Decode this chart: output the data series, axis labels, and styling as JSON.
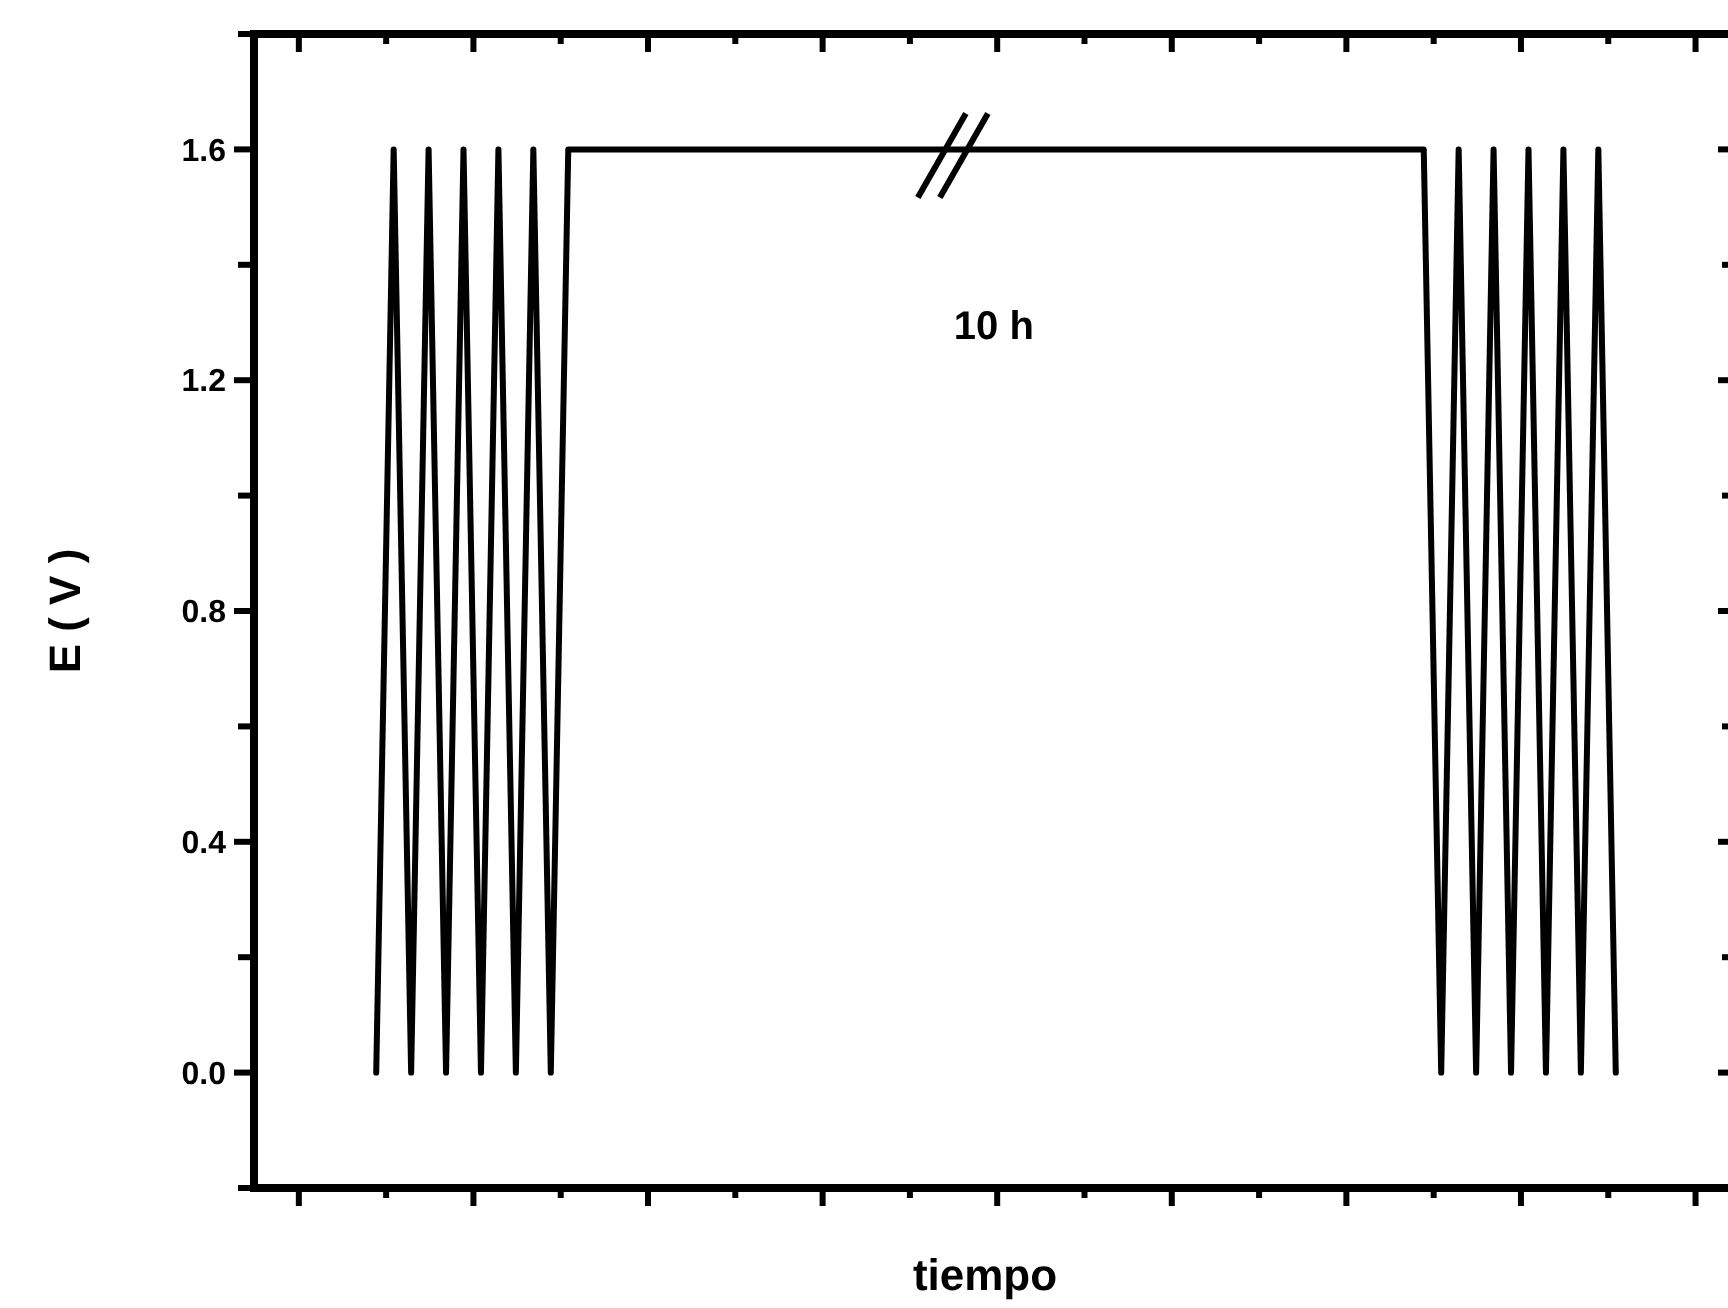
{
  "chart_data": {
    "type": "line",
    "xlabel": "tiempo",
    "ylabel": "E ( V )",
    "annotations": [
      "10 h"
    ],
    "categories": [
      null,
      null,
      null,
      null,
      null,
      null,
      null,
      null,
      null,
      null,
      null,
      null,
      null,
      null,
      null,
      null,
      null,
      null,
      null,
      null,
      null,
      null,
      null,
      null,
      null,
      null,
      null,
      null,
      null,
      null,
      null,
      null,
      null,
      null,
      null,
      null,
      null,
      null,
      null,
      null,
      null,
      null,
      null,
      null,
      null,
      null,
      null,
      null,
      null,
      null,
      null,
      null,
      null,
      null,
      null,
      null,
      null,
      null,
      null,
      null,
      null,
      null,
      null,
      null,
      null,
      null,
      null,
      null,
      null,
      null,
      null,
      null
    ],
    "ylim": [
      -0.2,
      1.8
    ],
    "yticks": [
      {
        "value": -0.2,
        "label": null
      },
      {
        "value": 0,
        "label": "0.0"
      },
      {
        "value": 0.4,
        "label": "0.4"
      },
      {
        "value": 0.8,
        "label": "0.8"
      },
      {
        "value": 1.2,
        "label": "1.2"
      },
      {
        "value": 1.6,
        "label": "1.6"
      },
      {
        "value": 1.8,
        "label": null
      }
    ],
    "tick_labels": "y",
    "marker": "none",
    "line_style": "solid",
    "series": [
      {
        "color": "#000000",
        "values": [
          0,
          1.6,
          0,
          1.6,
          0,
          1.6,
          0,
          1.6,
          0,
          1.6,
          0,
          1.6,
          1.6,
          1.6,
          1.6,
          1.6,
          1.6,
          1.6,
          1.6,
          1.6,
          1.6,
          1.6,
          1.6,
          1.6,
          1.6,
          1.6,
          1.6,
          1.6,
          1.6,
          1.6,
          1.6,
          1.6,
          1.6,
          1.6,
          1.6,
          1.6,
          1.6,
          1.6,
          1.6,
          1.6,
          1.6,
          1.6,
          1.6,
          1.6,
          1.6,
          1.6,
          1.6,
          1.6,
          1.6,
          1.6,
          1.6,
          1.6,
          1.6,
          1.6,
          1.6,
          1.6,
          1.6,
          1.6,
          1.6,
          1.6,
          1.6,
          0,
          1.6,
          0,
          1.6,
          0,
          1.6,
          0,
          1.6,
          0,
          1.6,
          0
        ]
      }
    ]
  }
}
